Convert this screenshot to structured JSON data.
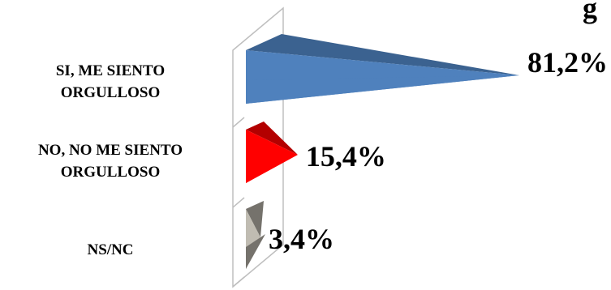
{
  "chart_data": {
    "type": "bar",
    "orientation": "horizontal",
    "style": "3d-pyramid",
    "title_fragment": "g",
    "categories": [
      [
        "SI, ME SIENTO",
        "ORGULLOSO"
      ],
      [
        "NO, NO ME SIENTO",
        "ORGULLOSO"
      ],
      [
        "NS/NC"
      ]
    ],
    "values": [
      81.2,
      15.4,
      3.4
    ],
    "value_labels": [
      "81,2%",
      "15,4%",
      "3,4%"
    ],
    "xlim": [
      0,
      100
    ],
    "colors": [
      "#4f81bd",
      "#ff0000",
      "#c0bcb2"
    ],
    "dark_colors": [
      "#3b6290",
      "#b30000",
      "#75726c"
    ],
    "legend": "none",
    "grid": false
  }
}
